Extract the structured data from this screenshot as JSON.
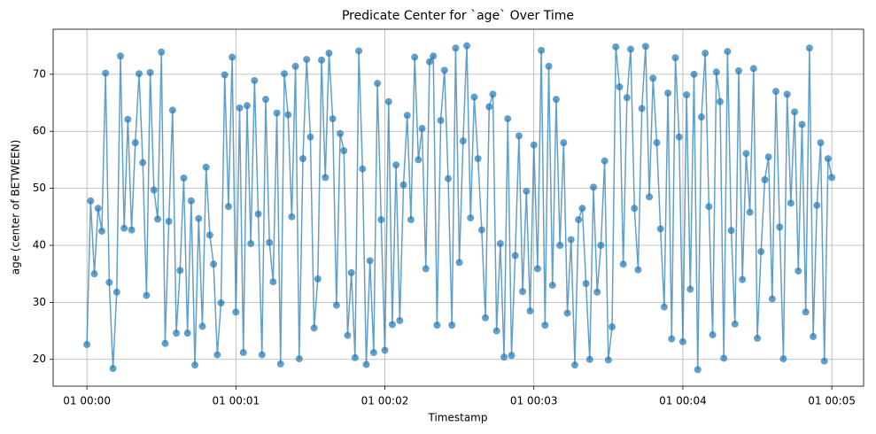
{
  "chart_data": {
    "type": "line",
    "title": "Predicate Center for `age` Over Time",
    "xlabel": "Timestamp",
    "ylabel": "age (center of BETWEEN)",
    "x": [
      0,
      1.5,
      3,
      4.5,
      6,
      7.5,
      9,
      10.5,
      12,
      13.5,
      15,
      16.5,
      18,
      19.5,
      21,
      22.5,
      24,
      25.5,
      27,
      28.5,
      30,
      31.5,
      33,
      34.5,
      36,
      37.5,
      39,
      40.5,
      42,
      43.5,
      45,
      46.5,
      48,
      49.5,
      51,
      52.5,
      54,
      55.5,
      57,
      58.5,
      60,
      61.5,
      63,
      64.5,
      66,
      67.5,
      69,
      70.5,
      72,
      73.5,
      75,
      76.5,
      78,
      79.5,
      81,
      82.5,
      84,
      85.5,
      87,
      88.5,
      90,
      91.5,
      93,
      94.5,
      96,
      97.5,
      99,
      100.5,
      102,
      103.5,
      105,
      106.5,
      108,
      109.5,
      111,
      112.5,
      114,
      115.5,
      117,
      118.5,
      120,
      121.5,
      123,
      124.5,
      126,
      127.5,
      129,
      130.5,
      132,
      133.5,
      135,
      136.5,
      138,
      139.5,
      141,
      142.5,
      144,
      145.5,
      147,
      148.5,
      150,
      151.5,
      153,
      154.5,
      156,
      157.5,
      159,
      160.5,
      162,
      163.5,
      165,
      166.5,
      168,
      169.5,
      171,
      172.5,
      174,
      175.5,
      177,
      178.5,
      180,
      181.5,
      183,
      184.5,
      186,
      187.5,
      189,
      190.5,
      192,
      193.5,
      195,
      196.5,
      198,
      199.5,
      201,
      202.5,
      204,
      205.5,
      207,
      208.5,
      210,
      211.5,
      213,
      214.5,
      216,
      217.5,
      219,
      220.5,
      222,
      223.5,
      225,
      226.5,
      228,
      229.5,
      231,
      232.5,
      234,
      235.5,
      237,
      238.5,
      240,
      241.5,
      243,
      244.5,
      246,
      247.5,
      249,
      250.5,
      252,
      253.5,
      255,
      256.5,
      258,
      259.5,
      261,
      262.5,
      264,
      265.5,
      267,
      268.5,
      270,
      271.5,
      273,
      274.5,
      276,
      277.5,
      279,
      280.5,
      282,
      283.5,
      285,
      286.5,
      288,
      289.5,
      291,
      292.5,
      294,
      295.5,
      297,
      298.5,
      300
    ],
    "series": [
      {
        "color": "#1f77b4",
        "values": [
          22.6,
          47.8,
          35.0,
          46.5,
          42.5,
          70.2,
          33.5,
          18.4,
          31.8,
          73.2,
          43.0,
          62.1,
          42.7,
          58.0,
          70.1,
          54.5,
          31.2,
          70.3,
          49.7,
          44.6,
          73.9,
          22.8,
          44.2,
          63.7,
          24.6,
          35.6,
          51.8,
          24.6,
          47.8,
          19.0,
          44.7,
          25.8,
          53.7,
          41.8,
          36.7,
          20.8,
          29.9,
          69.9,
          46.8,
          73.0,
          28.3,
          64.1,
          21.2,
          64.5,
          40.3,
          68.9,
          45.5,
          20.8,
          65.6,
          40.5,
          33.6,
          63.2,
          19.2,
          70.1,
          62.9,
          45.0,
          71.4,
          20.1,
          55.2,
          72.6,
          59.0,
          25.5,
          34.1,
          72.5,
          51.9,
          73.7,
          62.2,
          29.5,
          59.6,
          56.6,
          24.2,
          35.2,
          20.3,
          74.1,
          53.4,
          19.1,
          37.3,
          21.2,
          68.4,
          44.5,
          21.6,
          65.2,
          26.1,
          54.1,
          26.8,
          50.6,
          62.8,
          44.5,
          73.0,
          55.0,
          60.5,
          35.9,
          72.2,
          73.2,
          26.0,
          61.9,
          70.7,
          51.7,
          26.0,
          74.6,
          37.0,
          58.3,
          75.0,
          44.8,
          66.0,
          55.2,
          42.7,
          27.3,
          64.3,
          66.5,
          25.0,
          40.3,
          20.4,
          62.2,
          20.7,
          38.2,
          59.2,
          31.9,
          49.5,
          28.5,
          57.6,
          35.9,
          74.2,
          26.0,
          71.4,
          33.0,
          65.6,
          40.0,
          58.0,
          28.1,
          41.0,
          19.0,
          44.5,
          46.5,
          33.3,
          20.0,
          50.2,
          31.8,
          40.0,
          54.8,
          19.9,
          25.7,
          74.8,
          67.8,
          36.7,
          65.9,
          74.4,
          46.5,
          35.7,
          64.0,
          74.9,
          48.5,
          69.3,
          58.0,
          42.9,
          29.2,
          66.7,
          23.6,
          72.9,
          59.0,
          23.1,
          66.4,
          32.3,
          70.0,
          18.2,
          62.5,
          73.7,
          46.8,
          24.3,
          70.4,
          65.2,
          20.2,
          74.0,
          42.6,
          26.2,
          70.6,
          34.0,
          56.1,
          45.8,
          71.0,
          23.7,
          38.9,
          51.5,
          55.5,
          30.6,
          67.0,
          43.2,
          20.1,
          66.5,
          47.4,
          63.4,
          35.5,
          61.2,
          28.3,
          74.6,
          24.0,
          47.0,
          58.0,
          19.7,
          55.2,
          51.9
        ]
      }
    ],
    "xlim": [
      -13.6,
      312.8
    ],
    "xticks": [
      {
        "value": 0,
        "label": "01 00:00"
      },
      {
        "value": 60,
        "label": "01 00:01"
      },
      {
        "value": 120,
        "label": "01 00:02"
      },
      {
        "value": 180,
        "label": "01 00:03"
      },
      {
        "value": 240,
        "label": "01 00:04"
      },
      {
        "value": 300,
        "label": "01 00:05"
      }
    ],
    "ylim": [
      15.3,
      77.9
    ],
    "yticks": [
      20,
      30,
      40,
      50,
      60,
      70
    ],
    "grid": true
  }
}
